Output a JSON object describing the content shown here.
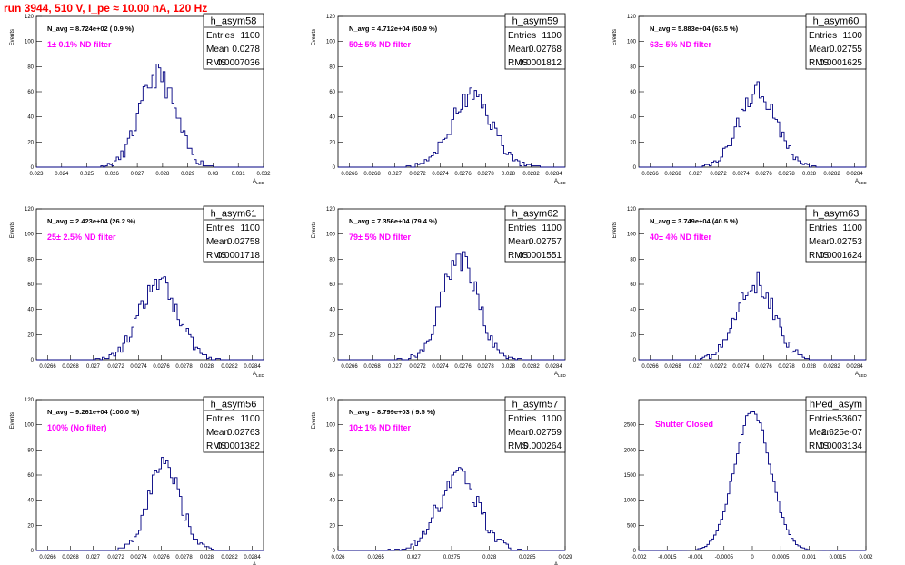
{
  "page": {
    "run_title": "run 3944,   510 V, I_pe ≈ 10.00 nA, 120 Hz",
    "colors": {
      "title": "#ff0000",
      "hist": "#000080",
      "annotation": "#ff00ff",
      "frame": "#000000",
      "background": "#ffffff"
    }
  },
  "chart_data": [
    {
      "type": "histogram",
      "name": "h_asym58",
      "navg": "N_avg = 8.724e+02 ( 0.9 %)",
      "filter": "1± 0.1% ND filter",
      "ylabel": "Events",
      "xlabel": "A_LED",
      "stats": {
        "entries": "1100",
        "mean": "0.0278",
        "rms": "0.0007036"
      },
      "xlim": [
        0.023,
        0.032
      ],
      "ylim": [
        0,
        120
      ],
      "xticks": [
        0.023,
        0.024,
        0.025,
        0.026,
        0.027,
        0.028,
        0.029,
        0.03,
        0.031,
        0.032
      ],
      "xtick_labels": [
        "0.023",
        "0.024",
        "0.025",
        "0.026",
        "0.027",
        "0.028",
        "0.029",
        "0.03",
        "0.031",
        "0.032"
      ],
      "yticks": [
        0,
        20,
        40,
        60,
        80,
        100,
        120
      ],
      "mu": 0.0278,
      "sigma": 0.0007036,
      "peak": 73,
      "bin": 8.8e-05,
      "seed": 11
    },
    {
      "type": "histogram",
      "name": "h_asym59",
      "navg": "N_avg = 4.712e+04 (50.9 %)",
      "filter": "50± 5% ND filter",
      "ylabel": "Events",
      "xlabel": "A_LED",
      "stats": {
        "entries": "1100",
        "mean": "0.02768",
        "rms": "0.0001812"
      },
      "xlim": [
        0.0265,
        0.0285
      ],
      "ylim": [
        0,
        120
      ],
      "xticks": [
        0.0266,
        0.0268,
        0.027,
        0.0272,
        0.0274,
        0.0276,
        0.0278,
        0.028,
        0.0282,
        0.0284
      ],
      "xtick_labels": [
        "0.0266",
        "0.0268",
        "0.027",
        "0.0272",
        "0.0274",
        "0.0276",
        "0.0278",
        "0.028",
        "0.0282",
        "0.0284"
      ],
      "yticks": [
        0,
        20,
        40,
        60,
        80,
        100,
        120
      ],
      "mu": 0.02768,
      "sigma": 0.0001812,
      "peak": 56,
      "bin": 2e-05,
      "seed": 23
    },
    {
      "type": "histogram",
      "name": "h_asym60",
      "navg": "N_avg = 5.883e+04 (63.5 %)",
      "filter": "63± 5% ND filter",
      "ylabel": "Events",
      "xlabel": "A_LED",
      "stats": {
        "entries": "1100",
        "mean": "0.02755",
        "rms": "0.0001625"
      },
      "xlim": [
        0.0265,
        0.0285
      ],
      "ylim": [
        0,
        120
      ],
      "xticks": [
        0.0266,
        0.0268,
        0.027,
        0.0272,
        0.0274,
        0.0276,
        0.0278,
        0.028,
        0.0282,
        0.0284
      ],
      "xtick_labels": [
        "0.0266",
        "0.0268",
        "0.027",
        "0.0272",
        "0.0274",
        "0.0276",
        "0.0278",
        "0.028",
        "0.0282",
        "0.0284"
      ],
      "yticks": [
        0,
        20,
        40,
        60,
        80,
        100,
        120
      ],
      "mu": 0.02755,
      "sigma": 0.0001625,
      "peak": 62,
      "bin": 2e-05,
      "seed": 37
    },
    {
      "type": "histogram",
      "name": "h_asym61",
      "navg": "N_avg = 2.423e+04 (26.2 %)",
      "filter": "25± 2.5% ND filter",
      "ylabel": "Events",
      "xlabel": "A_LED",
      "stats": {
        "entries": "1100",
        "mean": "0.02758",
        "rms": "0.0001718"
      },
      "xlim": [
        0.0265,
        0.0285
      ],
      "ylim": [
        0,
        120
      ],
      "xticks": [
        0.0266,
        0.0268,
        0.027,
        0.0272,
        0.0274,
        0.0276,
        0.0278,
        0.028,
        0.0282,
        0.0284
      ],
      "xtick_labels": [
        "0.0266",
        "0.0268",
        "0.027",
        "0.0272",
        "0.0274",
        "0.0276",
        "0.0278",
        "0.028",
        "0.0282",
        "0.0284"
      ],
      "yticks": [
        0,
        20,
        40,
        60,
        80,
        100,
        120
      ],
      "mu": 0.02758,
      "sigma": 0.0001718,
      "peak": 60,
      "bin": 2e-05,
      "seed": 41
    },
    {
      "type": "histogram",
      "name": "h_asym62",
      "navg": "N_avg = 7.356e+04 (79.4 %)",
      "filter": "79± 5% ND filter",
      "ylabel": "Events",
      "xlabel": "A_LED",
      "stats": {
        "entries": "1100",
        "mean": "0.02757",
        "rms": "0.0001551"
      },
      "xlim": [
        0.0265,
        0.0285
      ],
      "ylim": [
        0,
        120
      ],
      "xticks": [
        0.0266,
        0.0268,
        0.027,
        0.0272,
        0.0274,
        0.0276,
        0.0278,
        0.028,
        0.0282,
        0.0284
      ],
      "xtick_labels": [
        "0.0266",
        "0.0268",
        "0.027",
        "0.0272",
        "0.0274",
        "0.0276",
        "0.0278",
        "0.028",
        "0.0282",
        "0.0284"
      ],
      "yticks": [
        0,
        20,
        40,
        60,
        80,
        100,
        120
      ],
      "mu": 0.02757,
      "sigma": 0.0001551,
      "peak": 82,
      "bin": 2e-05,
      "seed": 53
    },
    {
      "type": "histogram",
      "name": "h_asym63",
      "navg": "N_avg = 3.749e+04 (40.5 %)",
      "filter": "40± 4% ND filter",
      "ylabel": "Events",
      "xlabel": "A_LED",
      "stats": {
        "entries": "1100",
        "mean": "0.02753",
        "rms": "0.0001624"
      },
      "xlim": [
        0.0265,
        0.0285
      ],
      "ylim": [
        0,
        120
      ],
      "xticks": [
        0.0266,
        0.0268,
        0.027,
        0.0272,
        0.0274,
        0.0276,
        0.0278,
        0.028,
        0.0282,
        0.0284
      ],
      "xtick_labels": [
        "0.0266",
        "0.0268",
        "0.027",
        "0.0272",
        "0.0274",
        "0.0276",
        "0.0278",
        "0.028",
        "0.0282",
        "0.0284"
      ],
      "yticks": [
        0,
        20,
        40,
        60,
        80,
        100,
        120
      ],
      "mu": 0.02753,
      "sigma": 0.0001624,
      "peak": 62,
      "bin": 2e-05,
      "seed": 67
    },
    {
      "type": "histogram",
      "name": "h_asym56",
      "navg": "N_avg = 9.261e+04 (100.0 %)",
      "filter": "100% (No filter)",
      "ylabel": "Events",
      "xlabel": "A_LED",
      "stats": {
        "entries": "1100",
        "mean": "0.02763",
        "rms": "0.0001382"
      },
      "xlim": [
        0.0265,
        0.0285
      ],
      "ylim": [
        0,
        120
      ],
      "xticks": [
        0.0266,
        0.0268,
        0.027,
        0.0272,
        0.0274,
        0.0276,
        0.0278,
        0.028,
        0.0282,
        0.0284
      ],
      "xtick_labels": [
        "0.0266",
        "0.0268",
        "0.027",
        "0.0272",
        "0.0274",
        "0.0276",
        "0.0278",
        "0.028",
        "0.0282",
        "0.0284"
      ],
      "yticks": [
        0,
        20,
        40,
        60,
        80,
        100,
        120
      ],
      "mu": 0.02763,
      "sigma": 0.0001382,
      "peak": 68,
      "bin": 2e-05,
      "seed": 71
    },
    {
      "type": "histogram",
      "name": "h_asym57",
      "navg": "N_avg = 8.799e+03 ( 9.5 %)",
      "filter": "10± 1% ND filter",
      "ylabel": "Events",
      "xlabel": "A_LED",
      "stats": {
        "entries": "1100",
        "mean": "0.02759",
        "rms": "0.000264"
      },
      "xlim": [
        0.026,
        0.029
      ],
      "ylim": [
        0,
        120
      ],
      "xticks": [
        0.026,
        0.0265,
        0.027,
        0.0275,
        0.028,
        0.0285,
        0.029
      ],
      "xtick_labels": [
        "0.026",
        "0.0265",
        "0.027",
        "0.0275",
        "0.028",
        "0.0285",
        "0.029"
      ],
      "yticks": [
        0,
        20,
        40,
        60,
        80,
        100,
        120
      ],
      "mu": 0.02759,
      "sigma": 0.000264,
      "peak": 60,
      "bin": 3e-05,
      "seed": 83
    },
    {
      "type": "histogram",
      "name": "hPed_asym",
      "navg": "",
      "filter": "Shutter Closed",
      "ylabel": "",
      "xlabel": "",
      "stats": {
        "entries": "53607",
        "mean": "2.625e-07",
        "rms": "0.0003134"
      },
      "xlim": [
        -0.002,
        0.002
      ],
      "ylim": [
        0,
        3000
      ],
      "xticks": [
        -0.002,
        -0.0015,
        -0.001,
        -0.0005,
        0,
        0.0005,
        0.001,
        0.0015,
        0.002
      ],
      "xtick_labels": [
        "-0.002",
        "-0.0015",
        "-0.001",
        "-0.0005",
        "0",
        "0.0005",
        "0.001",
        "0.0015",
        "0.002"
      ],
      "yticks": [
        0,
        500,
        1000,
        1500,
        2000,
        2500
      ],
      "mu": 2.625e-07,
      "sigma": 0.0003134,
      "peak": 2780,
      "bin": 4e-05,
      "seed": 97
    }
  ]
}
